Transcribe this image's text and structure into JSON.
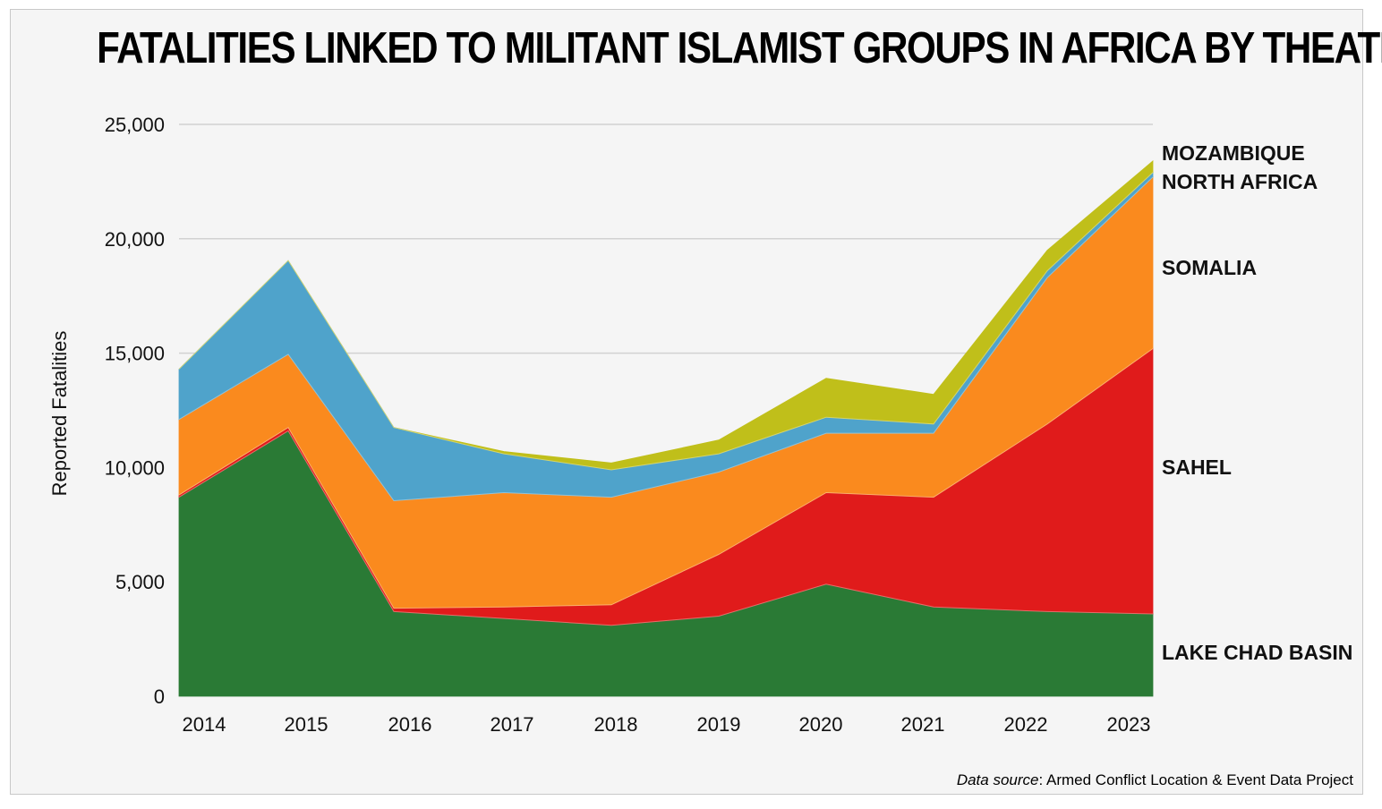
{
  "chart_data": {
    "type": "area",
    "stacked": true,
    "title": "FATALITIES LINKED TO MILITANT ISLAMIST GROUPS IN AFRICA BY THEATER",
    "ylabel": "Reported Fatalities",
    "xlabel": "",
    "x": [
      "2014",
      "2015",
      "2016",
      "2017",
      "2018",
      "2019",
      "2020",
      "2021",
      "2022",
      "2023"
    ],
    "yticks": [
      "0",
      "5,000",
      "10,000",
      "15,000",
      "20,000",
      "25,000"
    ],
    "ylim": [
      0,
      25000
    ],
    "grid": true,
    "legend": "labels at right end of areas",
    "series": [
      {
        "name": "LAKE CHAD BASIN",
        "color": "#2a7a35",
        "values": [
          8700,
          11600,
          3700,
          3400,
          3100,
          3500,
          4900,
          3900,
          3700,
          3600
        ]
      },
      {
        "name": "SAHEL",
        "color": "#e01b1b",
        "values": [
          100,
          150,
          150,
          500,
          900,
          2700,
          4000,
          4800,
          8200,
          11600
        ]
      },
      {
        "name": "SOMALIA",
        "color": "#fa8a1e",
        "values": [
          3300,
          3200,
          4700,
          5000,
          4700,
          3600,
          2600,
          2800,
          6400,
          7500
        ]
      },
      {
        "name": "NORTH AFRICA",
        "color": "#4fa3cb",
        "values": [
          2200,
          4100,
          3200,
          1700,
          1200,
          800,
          700,
          400,
          300,
          200
        ]
      },
      {
        "name": "MOZAMBIQUE",
        "color": "#c0bf1a",
        "values": [
          0,
          0,
          0,
          100,
          300,
          600,
          1700,
          1300,
          900,
          500
        ]
      }
    ],
    "source_label": "Data source",
    "source_text": ": Armed Conflict Location & Event Data Project"
  }
}
